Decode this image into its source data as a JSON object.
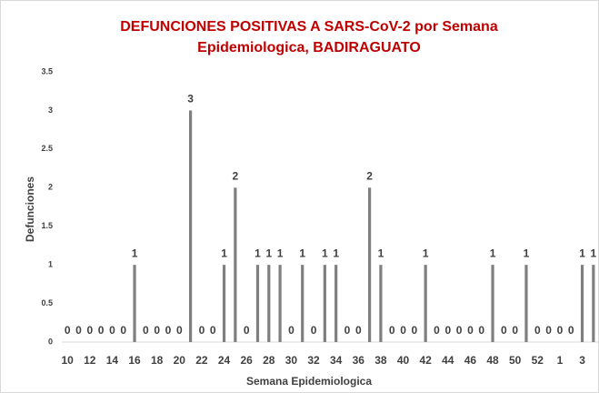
{
  "chart_data": {
    "type": "bar",
    "title": "DEFUNCIONES POSITIVAS A SARS-CoV-2 por Semana Epidemiologica,  BADIRAGUATO",
    "x_label": "Semana Epidemiologica",
    "y_label": "Defunciones",
    "categories": [
      10,
      null,
      12,
      null,
      14,
      null,
      16,
      null,
      18,
      null,
      20,
      null,
      22,
      null,
      24,
      null,
      26,
      null,
      28,
      null,
      30,
      null,
      32,
      null,
      34,
      null,
      36,
      null,
      38,
      null,
      40,
      null,
      42,
      null,
      44,
      null,
      46,
      null,
      48,
      null,
      50,
      null,
      52,
      null,
      1,
      null,
      3,
      null
    ],
    "values": [
      0,
      0,
      0,
      0,
      0,
      0,
      1,
      0,
      0,
      0,
      0,
      3,
      0,
      0,
      1,
      2,
      0,
      1,
      1,
      1,
      0,
      1,
      0,
      1,
      1,
      0,
      0,
      2,
      1,
      0,
      0,
      0,
      1,
      0,
      0,
      0,
      0,
      0,
      1,
      0,
      0,
      1,
      0,
      0,
      0,
      0,
      1,
      1
    ],
    "color": "#7f7f7f",
    "ylim": [
      0,
      3.5
    ],
    "yticks": [
      0,
      0.5,
      1,
      1.5,
      2,
      2.5,
      3,
      3.5
    ],
    "grid": false
  }
}
